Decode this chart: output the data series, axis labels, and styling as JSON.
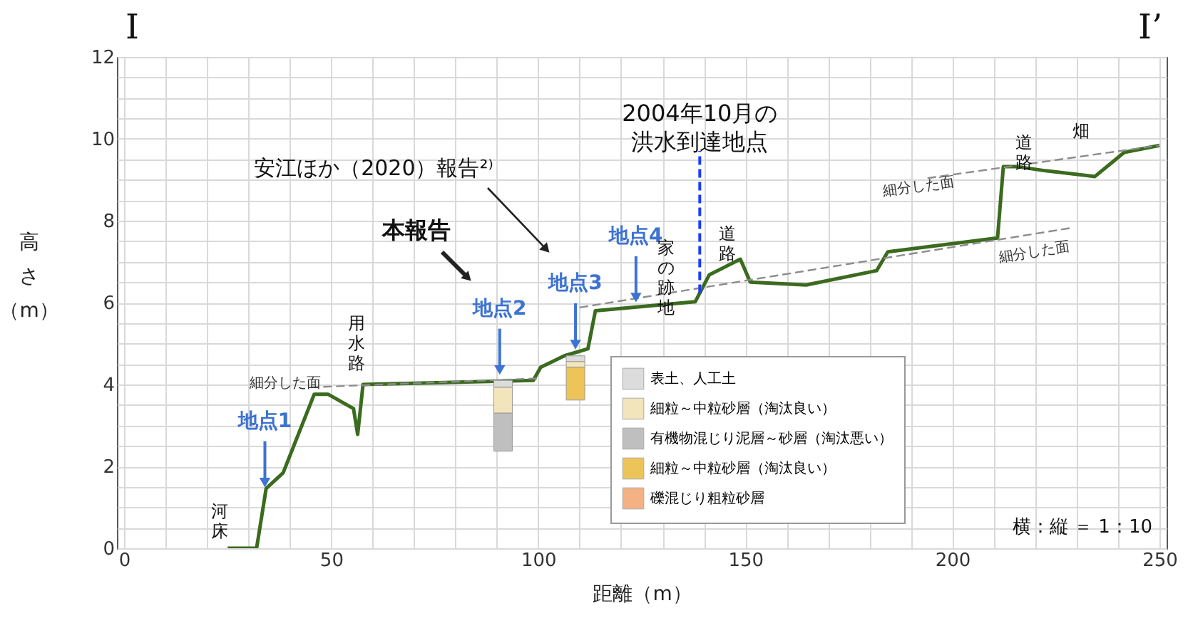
{
  "chart_data": {
    "type": "line",
    "xlabel": "距離（m）",
    "ylabel": "高さ（m）",
    "xlim": [
      0,
      250
    ],
    "ylim": [
      0,
      12
    ],
    "xticks": [
      0,
      {
        "value": 10,
        "label": null
      },
      {
        "value": 20,
        "label": null
      },
      {
        "value": 30,
        "label": null
      },
      {
        "value": 40,
        "label": null
      },
      50,
      {
        "value": 60,
        "label": null
      },
      {
        "value": 70,
        "label": null
      },
      {
        "value": 80,
        "label": null
      },
      {
        "value": 90,
        "label": null
      },
      100,
      {
        "value": 110,
        "label": null
      },
      {
        "value": 120,
        "label": null
      },
      {
        "value": 130,
        "label": null
      },
      {
        "value": 140,
        "label": null
      },
      150,
      {
        "value": 160,
        "label": null
      },
      {
        "value": 170,
        "label": null
      },
      {
        "value": 180,
        "label": null
      },
      {
        "value": 190,
        "label": null
      },
      200,
      {
        "value": 210,
        "label": null
      },
      {
        "value": 220,
        "label": null
      },
      {
        "value": 230,
        "label": null
      },
      {
        "value": 240,
        "label": null
      },
      250
    ],
    "yticks": [
      0,
      {
        "value": 0.5,
        "label": null
      },
      {
        "value": 1,
        "label": null
      },
      {
        "value": 1.5,
        "label": null
      },
      2,
      {
        "value": 2.5,
        "label": null
      },
      {
        "value": 3,
        "label": null
      },
      {
        "value": 3.5,
        "label": null
      },
      4,
      {
        "value": 4.5,
        "label": null
      },
      {
        "value": 5,
        "label": null
      },
      {
        "value": 5.5,
        "label": null
      },
      6,
      {
        "value": 6.5,
        "label": null
      },
      {
        "value": 7,
        "label": null
      },
      {
        "value": 7.5,
        "label": null
      },
      8,
      {
        "value": 8.5,
        "label": null
      },
      {
        "value": 9,
        "label": null
      },
      {
        "value": 9.5,
        "label": null
      },
      10,
      {
        "value": 10.5,
        "label": null
      },
      {
        "value": 11,
        "label": null
      },
      {
        "value": 11.5,
        "label": null
      },
      12
    ],
    "grid": true,
    "legend": "bottom",
    "series": [
      {
        "color": "#3b6b1e",
        "x": [
          25,
          32,
          34.3,
          38.4,
          45.9,
          49.3,
          55.4,
          56.4,
          57.7,
          98.8,
          100.6,
          106.3,
          112,
          113.8,
          137.9,
          141.3,
          148.8,
          151.2,
          164.7,
          181.7,
          184.4,
          210.9,
          212.3,
          215.7,
          222.5,
          234.4,
          241.5,
          250
        ],
        "values": [
          0,
          0,
          1.46,
          1.84,
          3.76,
          3.76,
          3.41,
          2.78,
          4.0,
          4.1,
          4.42,
          4.7,
          4.87,
          5.8,
          6.02,
          6.68,
          7.06,
          6.5,
          6.43,
          6.78,
          7.24,
          7.58,
          9.32,
          9.32,
          9.22,
          9.08,
          9.67,
          9.84
        ]
      },
      {
        "color": "#8c8c8c",
        "line_style": "dashed",
        "x": [
          45,
          100
        ],
        "values": [
          3.93,
          4.15
        ]
      },
      {
        "color": "#8c8c8c",
        "line_style": "dashed",
        "x": [
          110,
          229
        ],
        "values": [
          5.88,
          7.83
        ]
      },
      {
        "color": "#8c8c8c",
        "line_style": "dashed",
        "x": [
          194,
          250
        ],
        "values": [
          9.04,
          9.84
        ]
      },
      {
        "type": "bar",
        "name": "表土、人工土",
        "color": "#dcdcdc",
        "x": [
          91.5,
          109
        ],
        "base": [
          3.93,
          4.56
        ],
        "values": [
          0.17,
          0.14
        ]
      },
      {
        "type": "bar",
        "name": "細粒～中粒砂層（淘汰良い）",
        "color": "#f2e4bb",
        "x": [
          91.5,
          109
        ],
        "base": [
          3.3,
          4.42
        ],
        "values": [
          0.63,
          0.14
        ]
      },
      {
        "type": "bar",
        "name": "有機物混じり泥層～砂層（淘汰悪い）",
        "color": "#bfbfbf",
        "x": [
          91.5
        ],
        "base": [
          2.37
        ],
        "values": [
          0.93
        ]
      },
      {
        "type": "bar",
        "name": "細粒～中粒砂層（淘汰良い）",
        "color": "#ecc458",
        "x": [
          109
        ],
        "base": [
          3.62
        ],
        "values": [
          0.8
        ]
      },
      {
        "type": "bar",
        "name": "礫混じり粗粒砂層",
        "color": "#f4b183"
      }
    ],
    "ref_lines": [
      {
        "axis": "x",
        "value": 139,
        "label": "2004年10月の洪水到達地点",
        "color": "#1a3cff",
        "line_style": "dashed"
      }
    ],
    "annotations": [
      "I",
      "I’",
      "横：縦 ＝ 1：10",
      "本報告",
      "安江ほか（2020）報告²⁾",
      {
        "text": "地点1",
        "x": 34,
        "y": 1.5
      },
      {
        "text": "地点2",
        "x": 90.7,
        "y": 4.25
      },
      {
        "text": "地点3",
        "x": 109,
        "y": 4.87
      },
      {
        "text": "地点4",
        "x": 123.6,
        "y": 6.02
      },
      "河床",
      "用水路",
      "家の跡地",
      "道路",
      "道路",
      "畑",
      "細分した面",
      "細分した面",
      "細分した面"
    ]
  }
}
